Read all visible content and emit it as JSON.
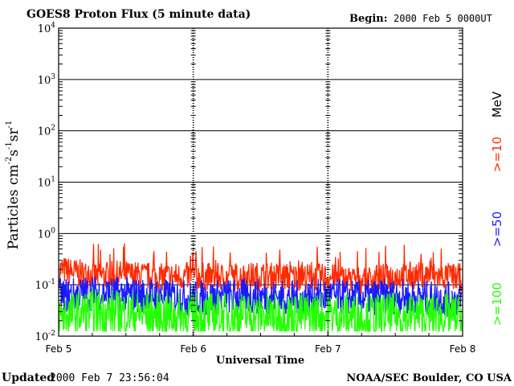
{
  "header": {
    "title": "GOES8 Proton Flux (5 minute data)",
    "begin_label": "Begin:",
    "begin_value": "2000 Feb 5 0000UT"
  },
  "footer": {
    "updated_label": "Updated",
    "updated_value": "2000 Feb  7 23:56:04",
    "credit": "NOAA/SEC Boulder, CO USA"
  },
  "chart_data": {
    "type": "line",
    "title": "GOES8 Proton Flux (5 minute data)",
    "xlabel": "Universal Time",
    "ylabel": "Particles cm-2s-1sr-1",
    "ylabel_parts": {
      "base": "Particles cm",
      "exp1": "-2",
      "mid1": "s",
      "exp2": "-1",
      "mid2": "sr",
      "exp3": "-1"
    },
    "x_ticks": [
      "Feb 5",
      "Feb 6",
      "Feb 7",
      "Feb 8"
    ],
    "xlim": [
      "2000-02-05 00:00",
      "2000-02-08 00:00"
    ],
    "y_scale": "log",
    "ylim": [
      0.01,
      10000
    ],
    "y_ticks": [
      {
        "base": "10",
        "exp": "-2"
      },
      {
        "base": "10",
        "exp": "-1"
      },
      {
        "base": "10",
        "exp": "0"
      },
      {
        "base": "10",
        "exp": "1"
      },
      {
        "base": "10",
        "exp": "2"
      },
      {
        "base": "10",
        "exp": "3"
      },
      {
        "base": "10",
        "exp": "4"
      }
    ],
    "grid": true,
    "legend_title": "MeV",
    "legend_placement": "right",
    "series": [
      {
        "name": ">=10",
        "color": "#ff2a00",
        "x": [
          "02-05 00",
          "02-05 06",
          "02-05 12",
          "02-05 18",
          "02-06 00",
          "02-06 06",
          "02-06 12",
          "02-06 18",
          "02-07 00",
          "02-07 06",
          "02-07 12",
          "02-07 18",
          "02-08 00"
        ],
        "values": [
          0.2,
          0.15,
          0.16,
          0.14,
          0.15,
          0.14,
          0.15,
          0.14,
          0.14,
          0.12,
          0.15,
          0.15,
          0.14
        ]
      },
      {
        "name": ">=50",
        "color": "#1a1aff",
        "x": [
          "02-05 00",
          "02-05 06",
          "02-05 12",
          "02-05 18",
          "02-06 00",
          "02-06 06",
          "02-06 12",
          "02-06 18",
          "02-07 00",
          "02-07 06",
          "02-07 12",
          "02-07 18",
          "02-08 00"
        ],
        "values": [
          0.06,
          0.07,
          0.065,
          0.06,
          0.055,
          0.06,
          0.06,
          0.055,
          0.06,
          0.055,
          0.06,
          0.055,
          0.05
        ]
      },
      {
        "name": ">=100",
        "color": "#22ff00",
        "x": [
          "02-05 00",
          "02-05 06",
          "02-05 12",
          "02-05 18",
          "02-06 00",
          "02-06 06",
          "02-06 12",
          "02-06 18",
          "02-07 00",
          "02-07 06",
          "02-07 12",
          "02-07 18",
          "02-08 00"
        ],
        "values": [
          0.025,
          0.03,
          0.028,
          0.025,
          0.025,
          0.026,
          0.025,
          0.025,
          0.026,
          0.024,
          0.025,
          0.025,
          0.024
        ]
      }
    ]
  }
}
